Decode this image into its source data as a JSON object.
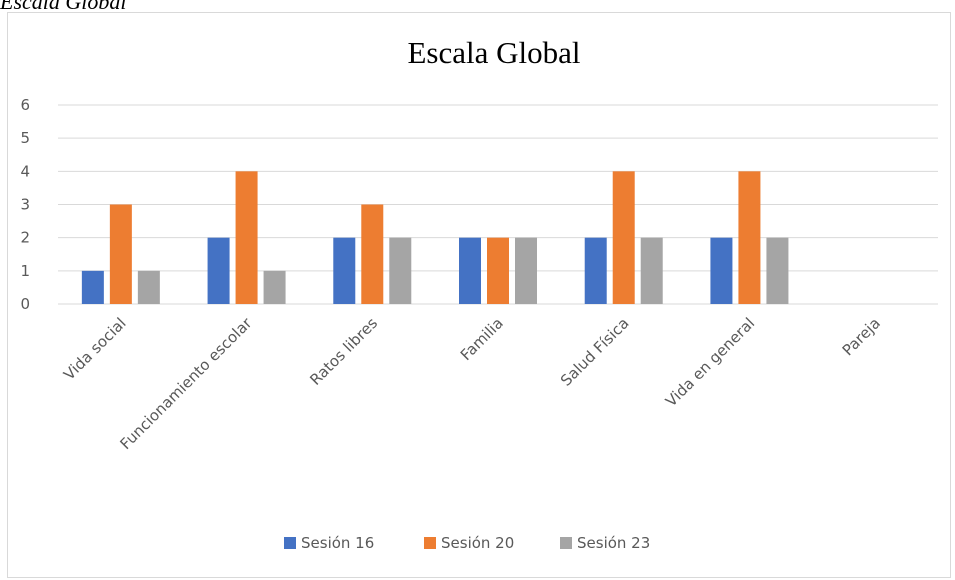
{
  "page": {
    "caption": "Escala Global"
  },
  "chart_data": {
    "type": "bar",
    "title": "Escala Global",
    "xlabel": "",
    "ylabel": "",
    "ylim": [
      0,
      6
    ],
    "yticks": [
      0,
      1,
      2,
      3,
      4,
      5,
      6
    ],
    "grid": true,
    "legend_position": "bottom",
    "categories": [
      "Vida social",
      "Funcionamiento escolar",
      "Ratos libres",
      "Familia",
      "Salud Física",
      "Vida en general",
      "Pareja"
    ],
    "series": [
      {
        "name": "Sesión 16",
        "color": "#4472c4",
        "values": [
          1,
          2,
          2,
          2,
          2,
          2,
          null
        ]
      },
      {
        "name": "Sesión 20",
        "color": "#ed7d31",
        "values": [
          3,
          4,
          3,
          2,
          4,
          4,
          null
        ]
      },
      {
        "name": "Sesión 23",
        "color": "#a5a5a5",
        "values": [
          1,
          1,
          2,
          2,
          2,
          2,
          null
        ]
      }
    ]
  }
}
